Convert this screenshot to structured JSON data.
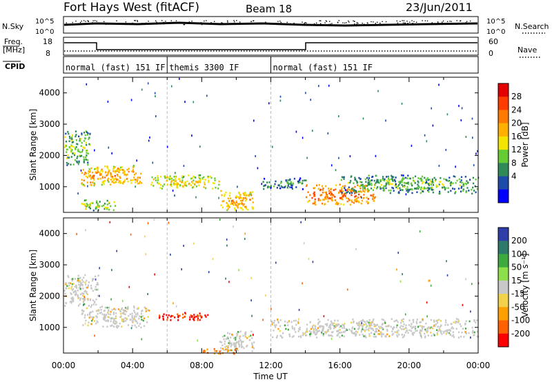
{
  "header": {
    "station": "Fort Hays West (fitACF)",
    "beam": "Beam 18",
    "date": "23/Jun/2011"
  },
  "noise_panel": {
    "left_label": "N.Sky",
    "left_ticks": [
      "10^5",
      "10^0"
    ],
    "right_label": "N.Search",
    "right_ticks": [
      "10^5",
      "10^0"
    ]
  },
  "freq_panel": {
    "left_label_line1": "Freq.",
    "left_label_line2": "[MHz]",
    "left_ticks": [
      "18",
      "8"
    ],
    "right_label": "Nave",
    "right_ticks": [
      "60",
      "0"
    ]
  },
  "cpid_panel": {
    "label": "CPID",
    "modes": [
      {
        "name": "normal (fast) 151 IF",
        "start_hour": 0,
        "end_hour": 6
      },
      {
        "name": "themis 3300 IF",
        "start_hour": 6,
        "end_hour": 12
      },
      {
        "name": "normal (fast) 151 IF",
        "start_hour": 12,
        "end_hour": 24
      }
    ]
  },
  "power_colorbar": {
    "label": "Power [dB]",
    "ticks": [
      "28",
      "24",
      "20",
      "16",
      "12",
      "8",
      "4"
    ],
    "colors": [
      "#e40000",
      "#ff3c00",
      "#ff7a00",
      "#ffb000",
      "#f5e400",
      "#66cc33",
      "#2e8b57",
      "#1e4aa8",
      "#0000ff"
    ]
  },
  "velocity_colorbar": {
    "label": "Velocity [m s⁻¹]",
    "ticks": [
      "200",
      "100",
      "50",
      "15",
      "-15",
      "-50",
      "-100",
      "-200"
    ],
    "colors": [
      "#2e3ea8",
      "#2e7a6a",
      "#3caa3c",
      "#8ee04a",
      "#c8c8c8",
      "#f2d24a",
      "#ffa000",
      "#ff6000",
      "#ff0000"
    ]
  },
  "x_axis": {
    "label": "Time UT",
    "ticks": [
      "00:00",
      "04:00",
      "08:00",
      "12:00",
      "16:00",
      "20:00",
      "00:00"
    ]
  },
  "y_axis": {
    "label": "Slant Range [km]",
    "ticks": [
      "4000",
      "3000",
      "2000",
      "1000"
    ]
  },
  "chart_data": [
    {
      "type": "heatmap",
      "title": "",
      "quantity": "Power [dB]",
      "xlabel": "Time UT",
      "ylabel": "Slant Range [km]",
      "xlim_hours": [
        0,
        24
      ],
      "ylim_km": [
        180,
        4500
      ],
      "echo_regions": [
        {
          "t0": 0.0,
          "t1": 1.5,
          "r0": 1700,
          "r1": 2800,
          "power_db": 14
        },
        {
          "t0": 1.0,
          "t1": 4.5,
          "r0": 1050,
          "r1": 1700,
          "power_db": 22
        },
        {
          "t0": 1.0,
          "t1": 3.0,
          "r0": 250,
          "r1": 600,
          "power_db": 16
        },
        {
          "t0": 5.0,
          "t1": 9.0,
          "r0": 950,
          "r1": 1400,
          "power_db": 18
        },
        {
          "t0": 9.0,
          "t1": 11.0,
          "r0": 250,
          "r1": 900,
          "power_db": 22
        },
        {
          "t0": 11.5,
          "t1": 14.0,
          "r0": 950,
          "r1": 1300,
          "power_db": 10
        },
        {
          "t0": 14.0,
          "t1": 18.0,
          "r0": 450,
          "r1": 1100,
          "power_db": 26
        },
        {
          "t0": 16.0,
          "t1": 24.0,
          "r0": 800,
          "r1": 1400,
          "power_db": 12
        }
      ]
    },
    {
      "type": "heatmap",
      "title": "",
      "quantity": "Velocity [m s-1]",
      "xlabel": "Time UT",
      "ylabel": "Slant Range [km]",
      "xlim_hours": [
        0,
        24
      ],
      "ylim_km": [
        180,
        4500
      ],
      "echo_regions": [
        {
          "t0": 0.0,
          "t1": 2.0,
          "r0": 1700,
          "r1": 2700,
          "velocity": 0
        },
        {
          "t0": 1.0,
          "t1": 5.0,
          "r0": 1000,
          "r1": 1700,
          "velocity": 0
        },
        {
          "t0": 5.5,
          "t1": 8.5,
          "r0": 1250,
          "r1": 1500,
          "velocity": -200
        },
        {
          "t0": 9.0,
          "t1": 11.0,
          "r0": 250,
          "r1": 900,
          "velocity": 0
        },
        {
          "t0": 12.0,
          "t1": 24.0,
          "r0": 700,
          "r1": 1300,
          "velocity": 0
        },
        {
          "t0": 8.0,
          "t1": 10.0,
          "r0": 180,
          "r1": 350,
          "velocity": -120
        }
      ]
    }
  ]
}
